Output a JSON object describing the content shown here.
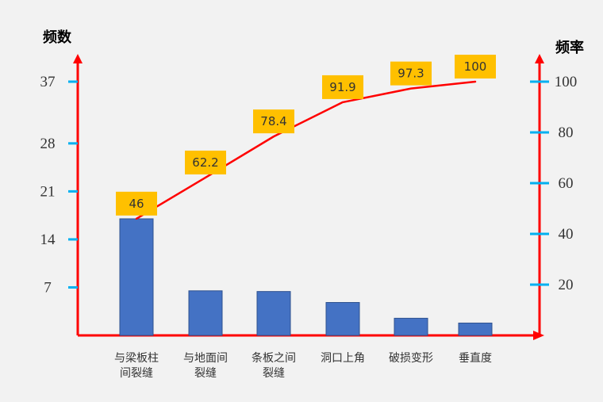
{
  "chart_data": {
    "type": "bar",
    "categories": [
      [
        "与梁板柱",
        "间裂缝"
      ],
      [
        "与地面间",
        "裂缝"
      ],
      [
        "条板之间",
        "裂缝"
      ],
      [
        "洞口上角"
      ],
      [
        "破损变形"
      ],
      [
        "垂直度"
      ]
    ],
    "left_axis_label": "频数",
    "right_axis_label": "频率",
    "left_ticks": [
      7,
      14,
      21,
      28,
      37
    ],
    "right_ticks": [
      20,
      40,
      60,
      80,
      100
    ],
    "left_ylim": [
      0,
      37
    ],
    "right_ylim": [
      0,
      100
    ],
    "bar_values": [
      17,
      6.5,
      6.4,
      4.8,
      2.5,
      1.8
    ],
    "line_values": [
      46,
      62.2,
      78.4,
      91.9,
      97.3,
      100
    ],
    "line_labels": [
      "46",
      "62.2",
      "78.4",
      "91.9",
      "97.3",
      "100"
    ],
    "grid": false,
    "legend": "none",
    "colors": {
      "background": "#f2f2f2",
      "axis": "#ff0000",
      "tick": "#00b0f0",
      "bar": "#4472c4",
      "bar_border": "#2f528f",
      "line": "#ff0000",
      "label_bg": "#ffc000",
      "text": "#333333"
    }
  }
}
